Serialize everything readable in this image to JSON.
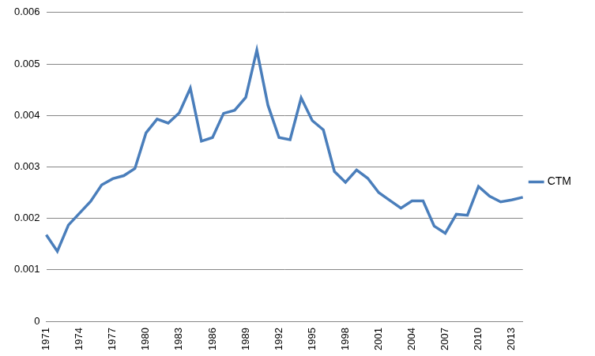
{
  "chart_data": {
    "type": "line",
    "categories": [
      "1971",
      null,
      null,
      "1974",
      null,
      null,
      "1977",
      null,
      null,
      "1980",
      null,
      null,
      "1983",
      null,
      null,
      "1986",
      null,
      null,
      "1989",
      null,
      null,
      "1992",
      null,
      null,
      "1995",
      null,
      null,
      "1998",
      null,
      null,
      "2001",
      null,
      null,
      "2004",
      null,
      null,
      "2007",
      null,
      null,
      "2010",
      null,
      null,
      "2013",
      null
    ],
    "series": [
      {
        "name": "CTM",
        "color": "#4a7ebb",
        "marker": "none",
        "line_style": "solid",
        "values": [
          0.00168,
          0.00136,
          0.00187,
          0.0021,
          0.00233,
          0.00265,
          0.00277,
          0.00283,
          0.00297,
          0.00366,
          0.00393,
          0.00385,
          0.00405,
          0.00453,
          0.0035,
          0.00357,
          0.00404,
          0.0041,
          0.00435,
          0.00527,
          0.0042,
          0.00357,
          0.00353,
          0.00434,
          0.0039,
          0.00372,
          0.00291,
          0.0027,
          0.00294,
          0.00278,
          0.0025,
          0.00235,
          0.0022,
          0.00234,
          0.00234,
          0.00185,
          0.00171,
          0.00208,
          0.00206,
          0.00262,
          0.00243,
          0.00232,
          0.00236,
          0.00241
        ]
      }
    ],
    "ylim": [
      0,
      0.006
    ],
    "yticks": [
      0,
      0.001,
      0.002,
      0.003,
      0.004,
      0.005,
      0.006
    ],
    "grid": true,
    "legend": "right"
  }
}
